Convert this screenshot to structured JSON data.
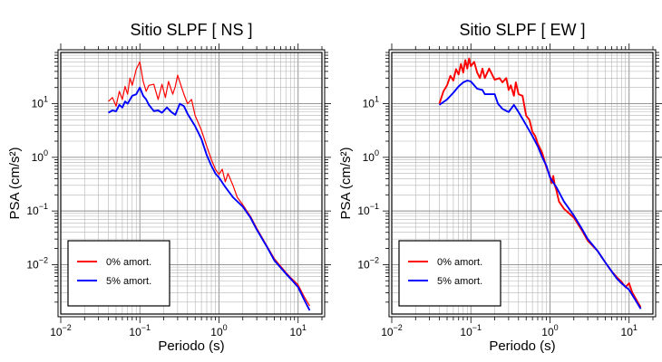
{
  "chart_data": [
    {
      "type": "line",
      "title": "Sitio SLPF [ NS ]",
      "xlabel": "Periodo (s)",
      "ylabel": "PSA (cm/s²)",
      "xscale": "log",
      "yscale": "log",
      "xlim": [
        0.01,
        20
      ],
      "ylim": [
        0.0012,
        90
      ],
      "x_ticks": [
        {
          "base": "10",
          "exp": "−2"
        },
        {
          "base": "10",
          "exp": "−1"
        },
        {
          "base": "10",
          "exp": "0"
        },
        {
          "base": "10",
          "exp": "1"
        }
      ],
      "y_ticks": [
        {
          "base": "10",
          "exp": "−2"
        },
        {
          "base": "10",
          "exp": "−1"
        },
        {
          "base": "10",
          "exp": "0"
        },
        {
          "base": "10",
          "exp": "1"
        }
      ],
      "grid": true,
      "legend_position": "bottom-left",
      "series": [
        {
          "name": "0% amort.",
          "color": "#ff0000",
          "points": [
            [
              0.04,
              11
            ],
            [
              0.045,
              13
            ],
            [
              0.05,
              9
            ],
            [
              0.055,
              17
            ],
            [
              0.06,
              12
            ],
            [
              0.065,
              21
            ],
            [
              0.07,
              15
            ],
            [
              0.075,
              30
            ],
            [
              0.08,
              22
            ],
            [
              0.09,
              44
            ],
            [
              0.1,
              60
            ],
            [
              0.11,
              26
            ],
            [
              0.12,
              17
            ],
            [
              0.13,
              22
            ],
            [
              0.15,
              23
            ],
            [
              0.17,
              12
            ],
            [
              0.19,
              23
            ],
            [
              0.21,
              13
            ],
            [
              0.23,
              26
            ],
            [
              0.26,
              15
            ],
            [
              0.28,
              21
            ],
            [
              0.3,
              34
            ],
            [
              0.33,
              22
            ],
            [
              0.36,
              15
            ],
            [
              0.4,
              10
            ],
            [
              0.45,
              12
            ],
            [
              0.5,
              6
            ],
            [
              0.6,
              3.2
            ],
            [
              0.7,
              1.6
            ],
            [
              0.8,
              0.92
            ],
            [
              0.9,
              0.6
            ],
            [
              1.0,
              0.48
            ],
            [
              1.1,
              0.6
            ],
            [
              1.2,
              0.35
            ],
            [
              1.3,
              0.5
            ],
            [
              1.5,
              0.3
            ],
            [
              1.7,
              0.18
            ],
            [
              2.0,
              0.13
            ],
            [
              2.5,
              0.08
            ],
            [
              3.0,
              0.048
            ],
            [
              4.0,
              0.023
            ],
            [
              5.0,
              0.013
            ],
            [
              7.0,
              0.0072
            ],
            [
              8.0,
              0.0058
            ],
            [
              10,
              0.0042
            ],
            [
              12,
              0.0025
            ],
            [
              14,
              0.0017
            ]
          ]
        },
        {
          "name": "5% amort.",
          "color": "#0000ff",
          "points": [
            [
              0.04,
              6.8
            ],
            [
              0.045,
              7.5
            ],
            [
              0.05,
              7.2
            ],
            [
              0.055,
              9.5
            ],
            [
              0.06,
              8.5
            ],
            [
              0.065,
              11
            ],
            [
              0.07,
              10
            ],
            [
              0.08,
              14
            ],
            [
              0.09,
              15
            ],
            [
              0.1,
              20
            ],
            [
              0.11,
              14
            ],
            [
              0.12,
              12
            ],
            [
              0.13,
              9.5
            ],
            [
              0.15,
              7.3
            ],
            [
              0.17,
              7.5
            ],
            [
              0.19,
              6.8
            ],
            [
              0.22,
              8.5
            ],
            [
              0.25,
              7
            ],
            [
              0.28,
              6.2
            ],
            [
              0.32,
              10
            ],
            [
              0.36,
              9
            ],
            [
              0.4,
              6.5
            ],
            [
              0.5,
              3.8
            ],
            [
              0.6,
              2.2
            ],
            [
              0.7,
              1.1
            ],
            [
              0.8,
              0.7
            ],
            [
              0.9,
              0.5
            ],
            [
              1.0,
              0.42
            ],
            [
              1.2,
              0.28
            ],
            [
              1.5,
              0.18
            ],
            [
              2.0,
              0.12
            ],
            [
              2.5,
              0.075
            ],
            [
              3.0,
              0.045
            ],
            [
              4.0,
              0.022
            ],
            [
              5.0,
              0.012
            ],
            [
              7.0,
              0.0068
            ],
            [
              8.0,
              0.0055
            ],
            [
              10,
              0.0038
            ],
            [
              12,
              0.0022
            ],
            [
              14,
              0.0014
            ]
          ]
        }
      ]
    },
    {
      "type": "line",
      "title": "Sitio SLPF [ EW ]",
      "xlabel": "Periodo (s)",
      "ylabel": "PSA (cm/s²)",
      "xscale": "log",
      "yscale": "log",
      "xlim": [
        0.01,
        20
      ],
      "ylim": [
        0.0012,
        90
      ],
      "x_ticks": [
        {
          "base": "10",
          "exp": "−2"
        },
        {
          "base": "10",
          "exp": "−1"
        },
        {
          "base": "10",
          "exp": "0"
        },
        {
          "base": "10",
          "exp": "1"
        }
      ],
      "y_ticks": [
        {
          "base": "10",
          "exp": "−2"
        },
        {
          "base": "10",
          "exp": "−1"
        },
        {
          "base": "10",
          "exp": "0"
        },
        {
          "base": "10",
          "exp": "1"
        }
      ],
      "grid": true,
      "legend_position": "bottom-left",
      "series": [
        {
          "name": "0% amort.",
          "color": "#ff0000",
          "points": [
            [
              0.04,
              10
            ],
            [
              0.045,
              17
            ],
            [
              0.05,
              22
            ],
            [
              0.055,
              33
            ],
            [
              0.06,
              27
            ],
            [
              0.065,
              44
            ],
            [
              0.07,
              35
            ],
            [
              0.075,
              55
            ],
            [
              0.08,
              38
            ],
            [
              0.085,
              65
            ],
            [
              0.09,
              45
            ],
            [
              0.095,
              70
            ],
            [
              0.1,
              50
            ],
            [
              0.11,
              60
            ],
            [
              0.12,
              38
            ],
            [
              0.13,
              30
            ],
            [
              0.14,
              45
            ],
            [
              0.15,
              30
            ],
            [
              0.17,
              45
            ],
            [
              0.2,
              28
            ],
            [
              0.23,
              30
            ],
            [
              0.25,
              25
            ],
            [
              0.28,
              30
            ],
            [
              0.3,
              18
            ],
            [
              0.32,
              22
            ],
            [
              0.35,
              14
            ],
            [
              0.37,
              25
            ],
            [
              0.4,
              15
            ],
            [
              0.45,
              14
            ],
            [
              0.5,
              6
            ],
            [
              0.55,
              5
            ],
            [
              0.6,
              3
            ],
            [
              0.65,
              2.5
            ],
            [
              0.7,
              1.8
            ],
            [
              0.8,
              1.2
            ],
            [
              0.9,
              0.65
            ],
            [
              1.0,
              0.45
            ],
            [
              1.05,
              0.33
            ],
            [
              1.1,
              0.45
            ],
            [
              1.15,
              0.3
            ],
            [
              1.2,
              0.25
            ],
            [
              1.3,
              0.15
            ],
            [
              1.5,
              0.11
            ],
            [
              2.0,
              0.075
            ],
            [
              2.5,
              0.045
            ],
            [
              3.0,
              0.028
            ],
            [
              4.0,
              0.018
            ],
            [
              5.0,
              0.011
            ],
            [
              6.0,
              0.0075
            ],
            [
              7.0,
              0.0058
            ],
            [
              8.0,
              0.0048
            ],
            [
              9.0,
              0.0038
            ],
            [
              10,
              0.0045
            ],
            [
              11,
              0.003
            ],
            [
              12,
              0.0024
            ],
            [
              14,
              0.0016
            ]
          ]
        },
        {
          "name": "5% amort.",
          "color": "#0000ff",
          "points": [
            [
              0.04,
              9.5
            ],
            [
              0.05,
              12
            ],
            [
              0.06,
              16
            ],
            [
              0.07,
              21
            ],
            [
              0.08,
              25
            ],
            [
              0.09,
              27
            ],
            [
              0.1,
              26
            ],
            [
              0.11,
              22
            ],
            [
              0.12,
              19
            ],
            [
              0.14,
              18
            ],
            [
              0.15,
              15
            ],
            [
              0.2,
              15
            ],
            [
              0.22,
              10
            ],
            [
              0.25,
              8
            ],
            [
              0.3,
              7
            ],
            [
              0.35,
              9.5
            ],
            [
              0.4,
              7
            ],
            [
              0.5,
              4
            ],
            [
              0.6,
              2.5
            ],
            [
              0.7,
              1.6
            ],
            [
              0.8,
              1.0
            ],
            [
              0.9,
              0.7
            ],
            [
              1.0,
              0.42
            ],
            [
              1.2,
              0.28
            ],
            [
              1.5,
              0.15
            ],
            [
              2.0,
              0.082
            ],
            [
              2.5,
              0.048
            ],
            [
              3.0,
              0.03
            ],
            [
              4.0,
              0.018
            ],
            [
              5.0,
              0.011
            ],
            [
              6.0,
              0.0075
            ],
            [
              7.0,
              0.0055
            ],
            [
              8.0,
              0.0045
            ],
            [
              10,
              0.0034
            ],
            [
              12,
              0.0022
            ],
            [
              14,
              0.0015
            ]
          ]
        }
      ]
    }
  ]
}
